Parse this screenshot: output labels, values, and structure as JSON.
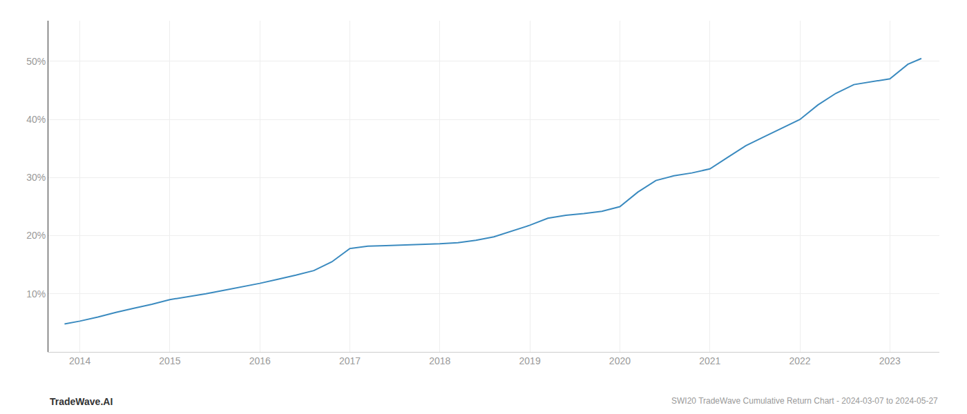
{
  "chart_data": {
    "type": "line",
    "title": "SWI20 TradeWave Cumulative Return Chart - 2024-03-07 to 2024-05-27",
    "annotations": [
      "TradeWave.AI"
    ],
    "color": "#3a8abf",
    "grid": true,
    "x": [
      2013.83,
      2014.0,
      2014.2,
      2014.4,
      2014.6,
      2014.8,
      2015.0,
      2015.2,
      2015.4,
      2015.6,
      2015.8,
      2016.0,
      2016.2,
      2016.4,
      2016.6,
      2016.8,
      2017.0,
      2017.1,
      2017.2,
      2017.4,
      2017.6,
      2017.8,
      2018.0,
      2018.2,
      2018.4,
      2018.6,
      2018.8,
      2019.0,
      2019.2,
      2019.4,
      2019.6,
      2019.8,
      2020.0,
      2020.2,
      2020.4,
      2020.6,
      2020.8,
      2021.0,
      2021.2,
      2021.4,
      2021.6,
      2021.8,
      2022.0,
      2022.2,
      2022.4,
      2022.6,
      2022.8,
      2023.0,
      2023.2,
      2023.35
    ],
    "values": [
      4.8,
      5.3,
      6.0,
      6.8,
      7.5,
      8.2,
      9.0,
      9.5,
      10.0,
      10.6,
      11.2,
      11.8,
      12.5,
      13.2,
      14.0,
      15.5,
      17.8,
      18.0,
      18.2,
      18.3,
      18.4,
      18.5,
      18.6,
      18.8,
      19.2,
      19.8,
      20.8,
      21.8,
      23.0,
      23.5,
      23.8,
      24.2,
      25.0,
      27.5,
      29.5,
      30.3,
      30.8,
      31.5,
      33.5,
      35.5,
      37.0,
      38.5,
      40.0,
      42.5,
      44.5,
      46.0,
      46.5,
      47.0,
      49.5,
      50.5
    ],
    "xlim": [
      2013.65,
      2023.55
    ],
    "xticks": [
      2014,
      2015,
      2016,
      2017,
      2018,
      2019,
      2020,
      2021,
      2022,
      2023
    ],
    "ylim": [
      0,
      57
    ],
    "yticks": [
      {
        "value": 10,
        "label": "10%"
      },
      {
        "value": 20,
        "label": "20%"
      },
      {
        "value": 30,
        "label": "30%"
      },
      {
        "value": 40,
        "label": "40%"
      },
      {
        "value": 50,
        "label": "50%"
      }
    ]
  }
}
